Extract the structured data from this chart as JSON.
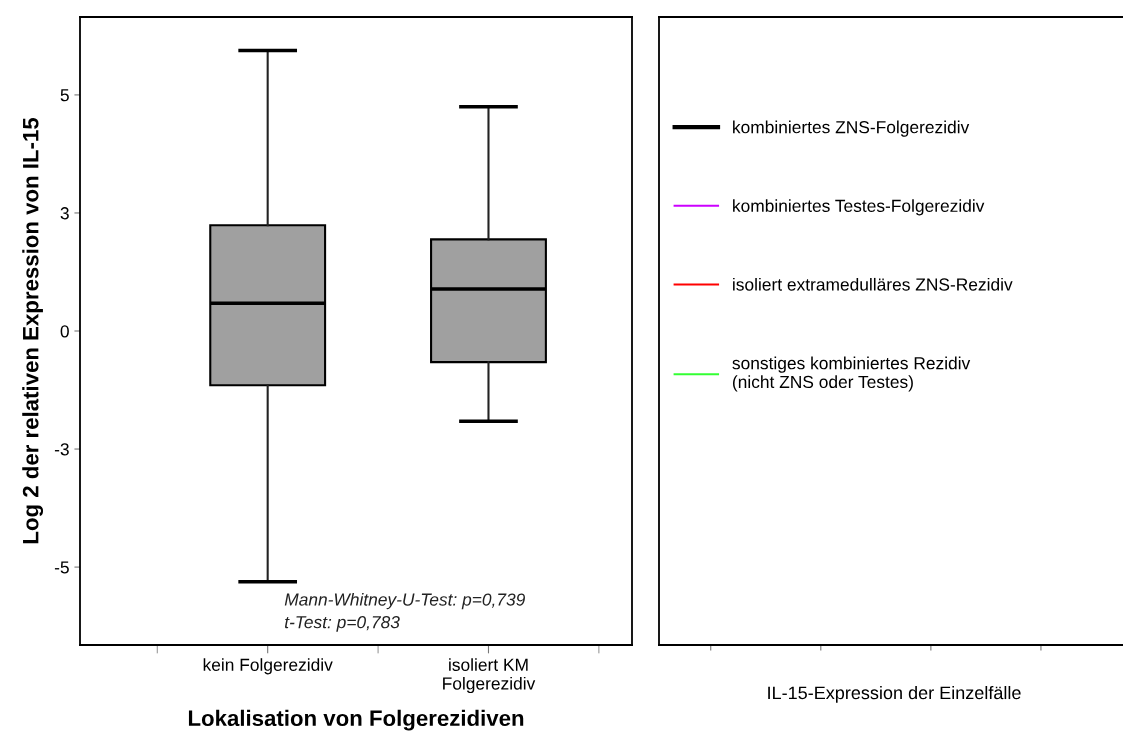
{
  "chart_data": [
    {
      "type": "box",
      "xlabel": "Lokalisation von Folgerezidiven",
      "ylabel": "Log 2 der relativen Expression von IL-15",
      "categories": [
        "kein Folgerezidiv",
        "isoliert KM\nFolgerezidiv"
      ],
      "boxes": [
        {
          "low": -5.31,
          "q1": -1.15,
          "median": 0.59,
          "q3": 2.24,
          "high": 5.94
        },
        {
          "low": -1.91,
          "q1": -0.66,
          "median": 0.89,
          "q3": 1.94,
          "high": 4.75
        }
      ],
      "color": "#a0a0a0",
      "ylim": [
        -6.65,
        6.65
      ],
      "yticks": [
        {
          "value": 5,
          "label": "5"
        },
        {
          "value": 2.5,
          "label": "3"
        },
        0,
        {
          "value": -2.5,
          "label": "-3"
        },
        {
          "value": -5,
          "label": "-5"
        }
      ],
      "annotations": [
        "Mann-Whitney-U-Test: p=0,739",
        "t-Test: p=0,783"
      ]
    },
    {
      "type": "other",
      "xlabel": "IL-15-Expression der Einzelfälle",
      "series": [
        {
          "name": "kombiniertes ZNS-Folgerezidiv",
          "color": "#000000"
        },
        {
          "name": "kombiniertes Testes-Folgerezidiv",
          "color": "#cc00ff"
        },
        {
          "name": "isoliert extramedulläres ZNS-Rezidiv",
          "color": "#ff0000"
        },
        {
          "name": "sonstiges kombiniertes Rezidiv\n(nicht ZNS oder Testes)",
          "color": "#33ff33"
        }
      ],
      "legend": "top left"
    }
  ]
}
